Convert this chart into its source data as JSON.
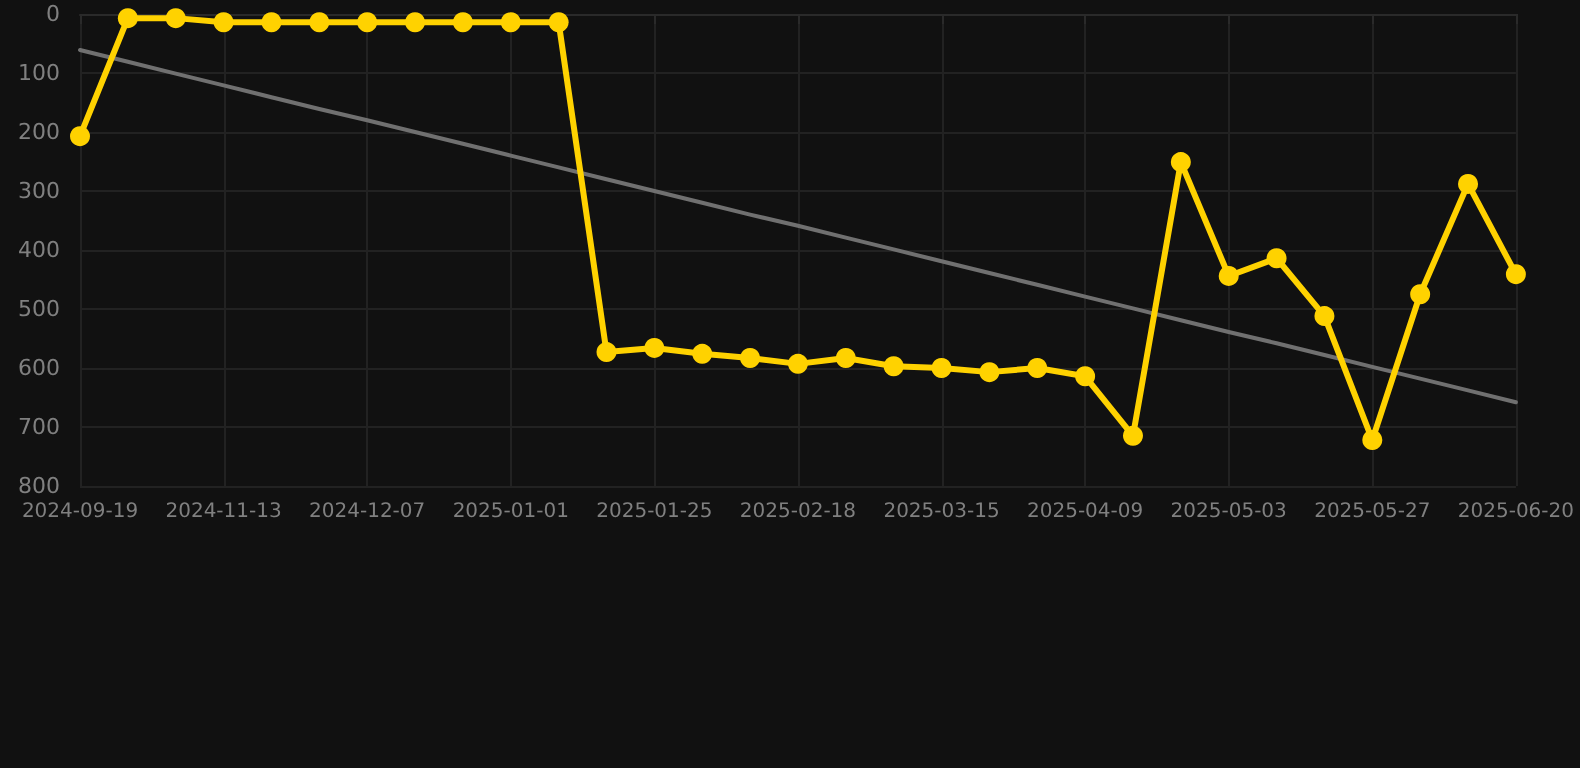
{
  "chart_data": {
    "type": "line",
    "categories": [
      "2024-09-19",
      null,
      null,
      "2024-11-13",
      null,
      null,
      "2024-12-07",
      null,
      null,
      "2025-01-01",
      null,
      null,
      "2025-01-25",
      null,
      null,
      "2025-02-18",
      null,
      null,
      "2025-03-15",
      null,
      null,
      "2025-04-09",
      null,
      null,
      "2025-05-03",
      null,
      null,
      "2025-05-27",
      null,
      null,
      "2025-06-20"
    ],
    "series": [
      {
        "color": "#ffd200",
        "values": [
          207,
          7,
          7,
          14,
          14,
          14,
          14,
          14,
          14,
          14,
          14,
          573,
          566,
          576,
          583,
          593,
          583,
          597,
          600,
          607,
          600,
          614,
          715,
          251,
          444,
          414,
          512,
          722,
          475,
          288,
          441
        ]
      },
      {
        "type": "line",
        "color": "#707070",
        "values": [
          61,
          81,
          101,
          121,
          141,
          161,
          180,
          200,
          220,
          240,
          260,
          280,
          300,
          320,
          340,
          359,
          379,
          399,
          419,
          439,
          459,
          479,
          499,
          519,
          539,
          558,
          578,
          598,
          618,
          638,
          658
        ],
        "marker": "none"
      }
    ],
    "ylim": [
      800,
      0
    ],
    "yticks": [
      0,
      100,
      200,
      300,
      400,
      500,
      600,
      700,
      800
    ],
    "grid": true,
    "marker": "circle",
    "line_style": "solid"
  }
}
